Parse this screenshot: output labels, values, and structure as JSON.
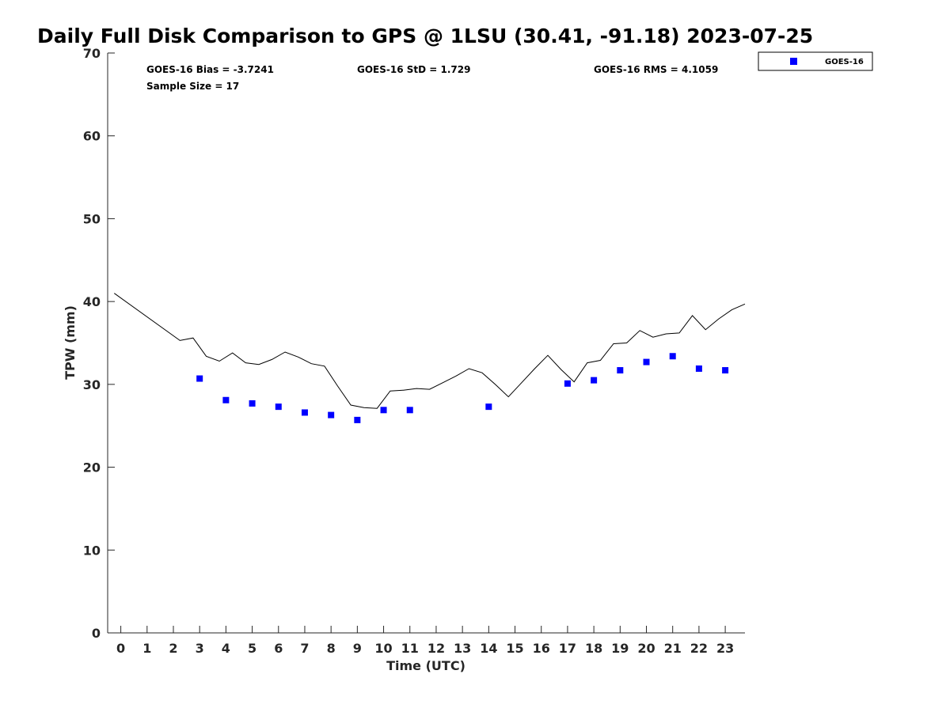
{
  "chart_data": {
    "type": "scatter",
    "title": "Daily Full Disk Comparison to GPS @ 1LSU (30.41, -91.18) 2023-07-25",
    "xlabel": "Time (UTC)",
    "ylabel": "TPW (mm)",
    "xlim": [
      -0.5,
      23.75
    ],
    "ylim": [
      0,
      70
    ],
    "x_ticks": [
      0,
      1,
      2,
      3,
      4,
      5,
      6,
      7,
      8,
      9,
      10,
      11,
      12,
      13,
      14,
      15,
      16,
      17,
      18,
      19,
      20,
      21,
      22,
      23
    ],
    "x_tick_labels": [
      "0",
      "1",
      "2",
      "3",
      "4",
      "5",
      "6",
      "7",
      "8",
      "9",
      "10",
      "11",
      "12",
      "13",
      "14",
      "15",
      "16",
      "17",
      "18",
      "19",
      "20",
      "21",
      "22",
      "23"
    ],
    "y_ticks": [
      0,
      10,
      20,
      30,
      40,
      50,
      60,
      70
    ],
    "y_tick_labels": [
      "0",
      "10",
      "20",
      "30",
      "40",
      "50",
      "60",
      "70"
    ],
    "grid": false,
    "legend_position": "top-right outside",
    "series": [
      {
        "name": "GOES-16",
        "kind": "scatter",
        "marker": "square",
        "color": "#0000ff",
        "x": [
          3,
          4,
          5,
          6,
          7,
          8,
          9,
          10,
          11,
          14,
          17,
          18,
          19,
          20,
          21,
          22,
          23
        ],
        "y": [
          30.7,
          28.1,
          27.7,
          27.3,
          26.6,
          26.3,
          25.7,
          26.9,
          26.9,
          27.3,
          30.1,
          30.5,
          31.7,
          32.7,
          33.4,
          31.9,
          31.7
        ]
      },
      {
        "kind": "line",
        "color": "#000000",
        "x": [
          -0.25,
          2.25,
          2.75,
          3.25,
          3.75,
          4.25,
          4.75,
          5.25,
          5.75,
          6.25,
          6.75,
          7.25,
          7.75,
          8.25,
          8.75,
          9.25,
          9.75,
          10.25,
          10.75,
          11.25,
          11.75,
          12.25,
          12.75,
          13.25,
          13.75,
          14.25,
          14.75,
          15.25,
          15.75,
          16.25,
          16.75,
          17.25,
          17.75,
          18.25,
          18.75,
          19.25,
          19.75,
          20.25,
          20.75,
          21.25,
          21.75,
          22.25,
          22.75,
          23.25,
          23.75
        ],
        "y": [
          41.0,
          35.3,
          35.6,
          33.4,
          32.8,
          33.8,
          32.6,
          32.4,
          33.0,
          33.9,
          33.3,
          32.5,
          32.2,
          29.8,
          27.5,
          27.2,
          27.1,
          29.2,
          29.3,
          29.5,
          29.4,
          30.2,
          31.0,
          31.9,
          31.4,
          30.0,
          28.5,
          30.2,
          31.9,
          33.5,
          31.8,
          30.3,
          32.6,
          32.9,
          34.9,
          35.0,
          36.5,
          35.7,
          36.1,
          36.2,
          38.3,
          36.6,
          37.9,
          39.0,
          39.7
        ]
      }
    ],
    "annotations": {
      "bias": "GOES-16 Bias = -3.7241",
      "std": "GOES-16 StD = 1.729",
      "rms": "GOES-16 RMS = 4.1059",
      "sample_size": "Sample Size = 17"
    },
    "legend_label": "GOES-16"
  }
}
